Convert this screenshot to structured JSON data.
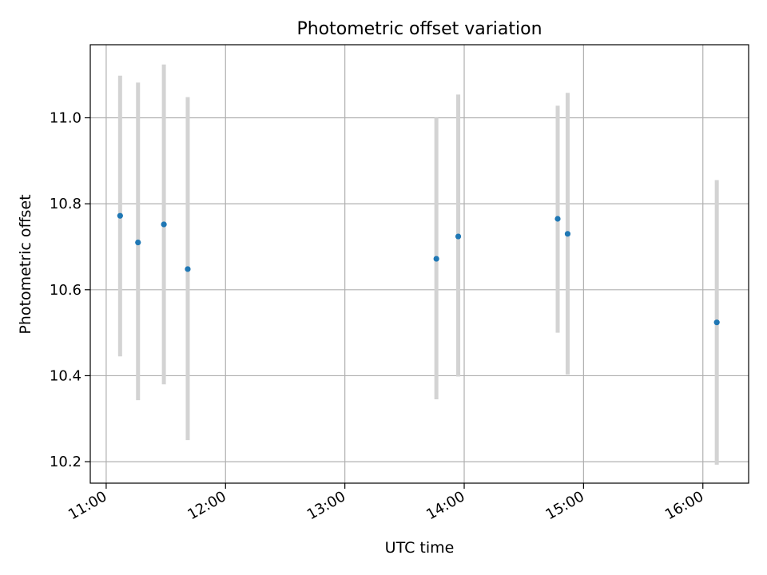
{
  "chart_data": {
    "type": "scatter",
    "title": "Photometric offset variation",
    "xlabel": "UTC time",
    "ylabel": "Photometric offset",
    "x_axis_type": "time",
    "xlim": [
      "10:52",
      "16:23"
    ],
    "ylim": [
      10.15,
      11.17
    ],
    "x_ticks": [
      "11:00",
      "12:00",
      "13:00",
      "14:00",
      "15:00",
      "16:00"
    ],
    "y_ticks": [
      "10.2",
      "10.4",
      "10.6",
      "10.8",
      "11.0"
    ],
    "grid": true,
    "series": [
      {
        "marker_color": "#1f77b4",
        "errorbar_color": "#d3d3d3",
        "points": [
          {
            "x": "11:07",
            "y": 10.772,
            "low": 10.445,
            "high": 11.098
          },
          {
            "x": "11:16",
            "y": 10.71,
            "low": 10.343,
            "high": 11.082
          },
          {
            "x": "11:29",
            "y": 10.752,
            "low": 10.38,
            "high": 11.124
          },
          {
            "x": "11:41",
            "y": 10.648,
            "low": 10.25,
            "high": 11.048
          },
          {
            "x": "13:46",
            "y": 10.672,
            "low": 10.345,
            "high": 11.0
          },
          {
            "x": "13:57",
            "y": 10.724,
            "low": 10.398,
            "high": 11.054
          },
          {
            "x": "14:47",
            "y": 10.765,
            "low": 10.5,
            "high": 11.028
          },
          {
            "x": "14:52",
            "y": 10.73,
            "low": 10.403,
            "high": 11.058
          },
          {
            "x": "16:07",
            "y": 10.524,
            "low": 10.193,
            "high": 10.855
          }
        ]
      }
    ]
  }
}
